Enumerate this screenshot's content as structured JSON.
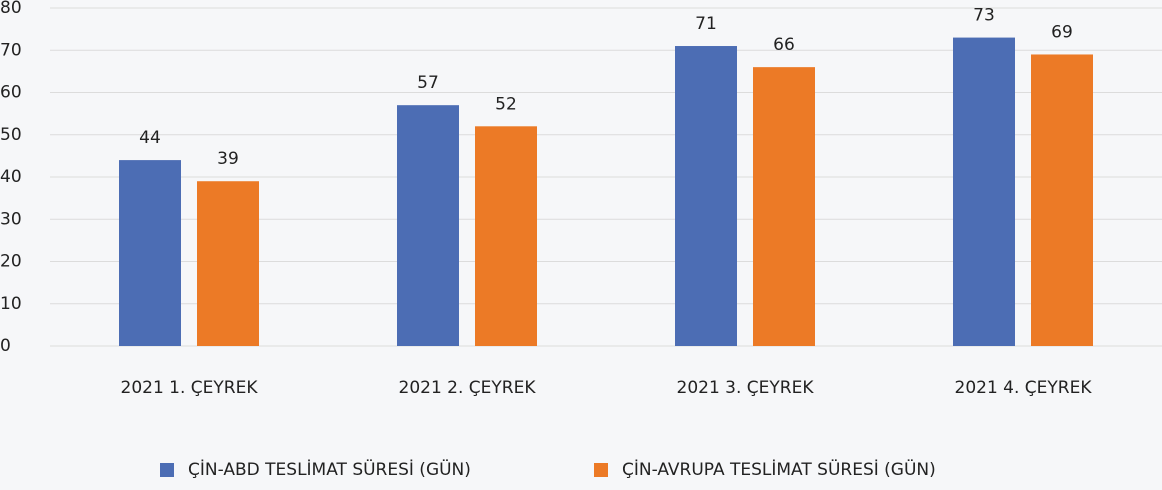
{
  "chart_data": {
    "type": "bar",
    "categories": [
      "2021 1. ÇEYREK",
      "2021 2. ÇEYREK",
      "2021 3. ÇEYREK",
      "2021 4. ÇEYREK"
    ],
    "series": [
      {
        "name": "ÇİN-ABD TESLİMAT SÜRESİ (GÜN)",
        "color": "#4c6db4",
        "values": [
          44,
          57,
          71,
          73
        ]
      },
      {
        "name": "ÇİN-AVRUPA TESLİMAT SÜRESİ (GÜN)",
        "color": "#ec7a26",
        "values": [
          39,
          52,
          66,
          69
        ]
      }
    ],
    "ylim": [
      0,
      80
    ],
    "yticks": [
      0,
      10,
      20,
      30,
      40,
      50,
      60,
      70,
      80
    ],
    "grid": true,
    "legend": "bottom"
  }
}
